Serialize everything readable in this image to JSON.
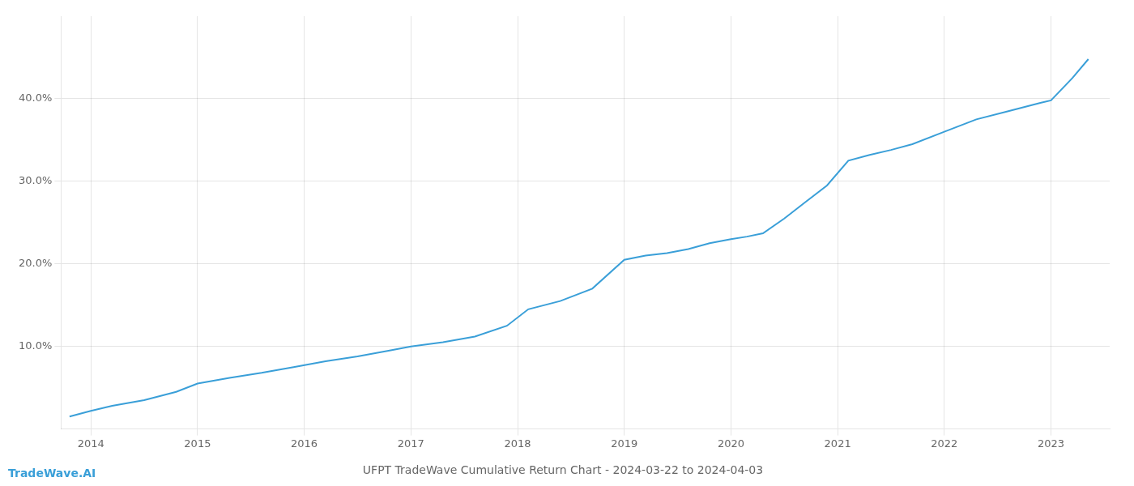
{
  "chart_data": {
    "type": "line",
    "title": "UFPT TradeWave Cumulative Return Chart - 2024-03-22 to 2024-04-03",
    "annotations": [
      "TradeWave.AI"
    ],
    "x": [
      2013.8,
      2014.0,
      2014.2,
      2014.5,
      2014.8,
      2015.0,
      2015.3,
      2015.6,
      2015.9,
      2016.2,
      2016.5,
      2016.8,
      2017.0,
      2017.3,
      2017.6,
      2017.9,
      2018.1,
      2018.4,
      2018.7,
      2019.0,
      2019.2,
      2019.4,
      2019.6,
      2019.8,
      2020.0,
      2020.15,
      2020.3,
      2020.5,
      2020.7,
      2020.9,
      2021.1,
      2021.3,
      2021.5,
      2021.7,
      2022.0,
      2022.3,
      2022.6,
      2022.9,
      2023.0,
      2023.2,
      2023.35
    ],
    "values": [
      1.5,
      2.2,
      2.8,
      3.5,
      4.5,
      5.5,
      6.2,
      6.8,
      7.5,
      8.2,
      8.8,
      9.5,
      10.0,
      10.5,
      11.2,
      12.5,
      14.5,
      15.5,
      17.0,
      20.5,
      21.0,
      21.3,
      21.8,
      22.5,
      23.0,
      23.3,
      23.7,
      25.5,
      27.5,
      29.5,
      32.5,
      33.2,
      33.8,
      34.5,
      36.0,
      37.5,
      38.5,
      39.5,
      39.8,
      42.5,
      44.8
    ],
    "color": "#3a9fd8",
    "xlim": [
      2013.72,
      2023.55
    ],
    "xticks": [
      2014,
      2015,
      2016,
      2017,
      2018,
      2019,
      2020,
      2021,
      2022,
      2023
    ],
    "ylim": [
      0,
      50
    ],
    "yticks": [
      {
        "value": 10.0,
        "label": "10.0%"
      },
      {
        "value": 20.0,
        "label": "20.0%"
      },
      {
        "value": 30.0,
        "label": "30.0%"
      },
      {
        "value": 40.0,
        "label": "40.0%"
      }
    ],
    "grid": true
  }
}
